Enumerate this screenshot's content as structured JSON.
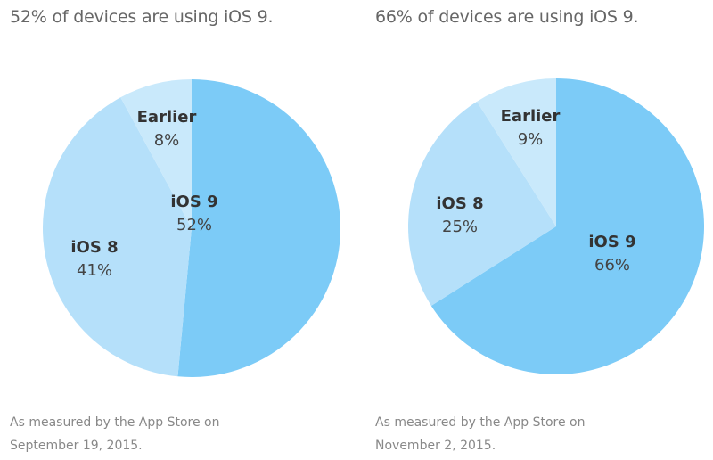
{
  "colors": {
    "ios9": "#7ccbf7",
    "ios8": "#b5e0fa",
    "earlier": "#c9e9fb"
  },
  "panels": [
    {
      "title": "52% of devices are using iOS 9.",
      "caption_line1": "As measured by the App Store on",
      "caption_line2": "September 19, 2015.",
      "slices": [
        {
          "name": "iOS 9",
          "value_label": "52%"
        },
        {
          "name": "iOS 8",
          "value_label": "41%"
        },
        {
          "name": "Earlier",
          "value_label": "8%"
        }
      ]
    },
    {
      "title": "66% of devices are using iOS 9.",
      "caption_line1": "As measured by the App Store on",
      "caption_line2": "November 2, 2015.",
      "slices": [
        {
          "name": "iOS 9",
          "value_label": "66%"
        },
        {
          "name": "iOS 8",
          "value_label": "25%"
        },
        {
          "name": "Earlier",
          "value_label": "9%"
        }
      ]
    }
  ],
  "chart_data": [
    {
      "type": "pie",
      "title": "52% of devices are using iOS 9.",
      "categories": [
        "iOS 9",
        "iOS 8",
        "Earlier"
      ],
      "values": [
        52,
        41,
        8
      ],
      "colors": [
        "#7ccbf7",
        "#b5e0fa",
        "#c9e9fb"
      ],
      "start_angle": "12 o'clock, clockwise",
      "annotation": "As measured by the App Store on September 19, 2015.",
      "legend": "none (inline slice labels)"
    },
    {
      "type": "pie",
      "title": "66% of devices are using iOS 9.",
      "categories": [
        "iOS 9",
        "iOS 8",
        "Earlier"
      ],
      "values": [
        66,
        25,
        9
      ],
      "colors": [
        "#7ccbf7",
        "#b5e0fa",
        "#c9e9fb"
      ],
      "start_angle": "12 o'clock, clockwise",
      "annotation": "As measured by the App Store on November 2, 2015.",
      "legend": "none (inline slice labels)"
    }
  ]
}
